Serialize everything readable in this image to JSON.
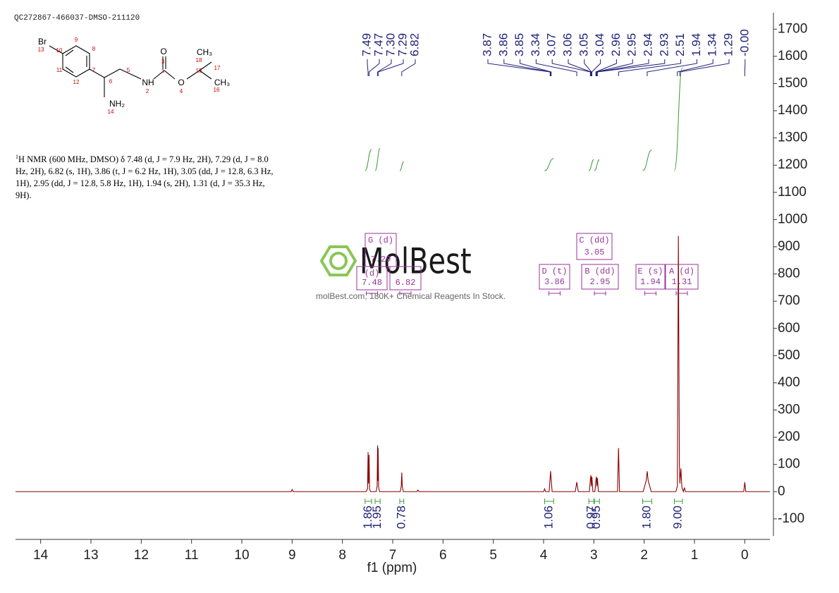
{
  "header": "QC272867-466037-DMSO-211120",
  "description": {
    "sup": "1",
    "text": "H NMR (600 MHz, DMSO) δ 7.48 (d, J = 7.9 Hz, 2H), 7.29 (d, J = 8.0 Hz, 2H), 6.82 (s, 1H), 3.86 (t, J = 6.2 Hz, 1H), 3.05 (dd, J = 12.8, 6.3 Hz, 1H), 2.95 (dd, J = 12.8, 5.8 Hz, 1H), 1.94 (s, 2H), 1.31 (d, J = 35.3 Hz, 9H)."
  },
  "structure": {
    "labels": [
      "Br",
      "13",
      "10",
      "9",
      "8",
      "11",
      "12",
      "7",
      "6",
      "5",
      "NH",
      "2",
      "1",
      "3",
      "O",
      "O",
      "4",
      "15",
      "18",
      "CH₃",
      "17",
      "CH₃",
      "16",
      "NH₂",
      "14"
    ]
  },
  "watermark": {
    "brand": "MolBest",
    "tagline": "molBest.com, 180K+ Chemical Reagents In Stock."
  },
  "chart_data": {
    "type": "line",
    "xlabel": "f1 (ppm)",
    "color": "#8b0000",
    "xlim": [
      14.5,
      -0.5
    ],
    "xticks": [
      14,
      13,
      12,
      11,
      10,
      9,
      8,
      7,
      6,
      5,
      4,
      3,
      2,
      1,
      0
    ],
    "ylim": [
      -160,
      1750
    ],
    "yticks": [
      -100,
      0,
      100,
      200,
      300,
      400,
      500,
      600,
      700,
      800,
      900,
      1000,
      1100,
      1200,
      1300,
      1400,
      1500,
      1600,
      1700
    ],
    "x": [
      14.5,
      9.02,
      9.0,
      8.98,
      7.53,
      7.5,
      7.49,
      7.48,
      7.47,
      7.46,
      7.44,
      7.33,
      7.31,
      7.3,
      7.295,
      7.29,
      7.28,
      7.26,
      6.85,
      6.83,
      6.82,
      6.81,
      6.79,
      6.52,
      6.5,
      6.48,
      4.0,
      3.98,
      3.96,
      3.89,
      3.87,
      3.86,
      3.85,
      3.83,
      3.37,
      3.34,
      3.31,
      3.09,
      3.07,
      3.06,
      3.05,
      3.04,
      3.02,
      2.98,
      2.96,
      2.95,
      2.94,
      2.93,
      2.91,
      2.53,
      2.51,
      2.49,
      2.02,
      1.96,
      1.94,
      1.92,
      1.86,
      1.37,
      1.34,
      1.32,
      1.3,
      1.29,
      1.27,
      1.25,
      1.22,
      1.2,
      1.18,
      0.02,
      0.0,
      -0.02,
      -0.5
    ],
    "values": [
      0,
      0,
      8,
      0,
      0,
      10,
      145,
      30,
      135,
      10,
      0,
      0,
      20,
      170,
      40,
      160,
      15,
      0,
      0,
      20,
      70,
      20,
      0,
      0,
      6,
      0,
      0,
      10,
      0,
      0,
      50,
      75,
      45,
      0,
      0,
      35,
      0,
      0,
      45,
      60,
      20,
      55,
      0,
      0,
      40,
      55,
      20,
      50,
      0,
      0,
      160,
      0,
      0,
      40,
      75,
      40,
      0,
      0,
      20,
      940,
      100,
      30,
      85,
      15,
      0,
      15,
      0,
      0,
      35,
      0,
      0
    ],
    "peaks": [
      7.49,
      7.47,
      {
        "value": 7.3,
        "label": "7.30"
      },
      7.29,
      6.82,
      3.87,
      3.86,
      3.85,
      3.34,
      3.07,
      3.06,
      3.05,
      3.04,
      2.96,
      2.95,
      2.94,
      2.93,
      2.51,
      1.94,
      1.34,
      1.29,
      {
        "value": 0,
        "label": "-0.00"
      }
    ],
    "integrals": [
      {
        "from": 7.55,
        "to": 7.42,
        "value": 1.86
      },
      {
        "from": 7.35,
        "to": 7.25,
        "value": 1.95
      },
      {
        "from": 6.86,
        "to": 6.78,
        "value": 0.78
      },
      {
        "from": 3.98,
        "to": 3.8,
        "value": 1.06
      },
      {
        "from": 3.1,
        "to": 3.0,
        "value": 0.97
      },
      {
        "from": 2.99,
        "to": 2.89,
        "value": 0.95
      },
      {
        "from": 2.03,
        "to": 1.85,
        "value": 1.8,
        "label": "1.80"
      },
      {
        "from": 1.4,
        "to": 1.24,
        "value": 9,
        "label": "9.00"
      }
    ],
    "multiplets": [
      {
        "label": "G (d)",
        "shift": 7.29
      },
      {
        "label": "(d)",
        "shift": 7.48
      },
      {
        "shift": 6.82
      },
      {
        "label": "D (t)",
        "shift": 3.86
      },
      {
        "label": "C (dd)",
        "shift": 3.05
      },
      {
        "label": "B (dd)",
        "shift": 2.95
      },
      {
        "label": "E (s)",
        "shift": 1.94
      },
      {
        "label": "A (d)",
        "shift": 1.31
      }
    ]
  }
}
